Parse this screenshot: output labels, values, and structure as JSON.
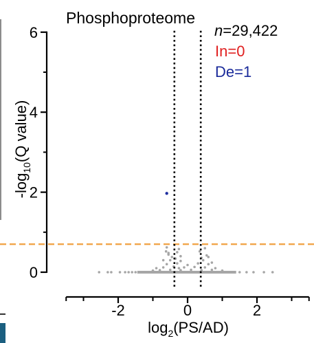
{
  "chart_data": {
    "type": "scatter",
    "title": "Phosphoproteome",
    "xlabel_main": "log",
    "xlabel_sub": "2",
    "xlabel_rest": "(PS/AD)",
    "ylabel_main": "-log",
    "ylabel_sub": "10",
    "ylabel_rest": "(Q value)",
    "xlim": [
      -3.5,
      3.5
    ],
    "ylim": [
      0,
      6
    ],
    "x_ticks": [
      -2,
      0,
      2
    ],
    "y_ticks": [
      0,
      2,
      4,
      6
    ],
    "x_minor_ticks": [
      -3,
      -1,
      1,
      3
    ],
    "y_minor_ticks": [
      1,
      3,
      5
    ],
    "x_tick_labels": [
      "-2",
      "0",
      "2"
    ],
    "y_tick_labels": [
      "0",
      "2",
      "4",
      "6"
    ],
    "fc_threshold_lines": [
      -0.38,
      0.38
    ],
    "q_threshold_line": 0.7,
    "colors": {
      "background_points": "#a6a6a6",
      "down_points": "#1f2fa0",
      "up_text": "#e02020",
      "down_text": "#1a2a9a",
      "threshold_line": "#f0a040",
      "fc_line": "#000000"
    },
    "annotations": {
      "n_prefix": "n",
      "n_value": "=29,422",
      "in_label": "In=0",
      "de_label": "De=1"
    },
    "significant_down": [
      {
        "x": -0.6,
        "y": 1.97
      }
    ],
    "background_points": [
      {
        "x": -2.55,
        "y": 0.0
      },
      {
        "x": -2.3,
        "y": 0.0
      },
      {
        "x": -2.2,
        "y": 0.0
      },
      {
        "x": -1.95,
        "y": 0.0
      },
      {
        "x": -1.8,
        "y": 0.0
      },
      {
        "x": -1.7,
        "y": 0.0
      },
      {
        "x": -1.6,
        "y": 0.0
      },
      {
        "x": -1.5,
        "y": 0.0
      },
      {
        "x": -1.4,
        "y": 0.0
      },
      {
        "x": -1.3,
        "y": 0.0
      },
      {
        "x": -1.2,
        "y": 0.0
      },
      {
        "x": -1.1,
        "y": 0.0
      },
      {
        "x": -1.0,
        "y": 0.0
      },
      {
        "x": -0.9,
        "y": 0.0
      },
      {
        "x": -0.8,
        "y": 0.0
      },
      {
        "x": -0.7,
        "y": 0.0
      },
      {
        "x": -0.6,
        "y": 0.0
      },
      {
        "x": -0.5,
        "y": 0.0
      },
      {
        "x": -0.4,
        "y": 0.0
      },
      {
        "x": -0.3,
        "y": 0.0
      },
      {
        "x": -0.2,
        "y": 0.0
      },
      {
        "x": -0.1,
        "y": 0.0
      },
      {
        "x": 0.0,
        "y": 0.0
      },
      {
        "x": 0.1,
        "y": 0.0
      },
      {
        "x": 0.2,
        "y": 0.0
      },
      {
        "x": 0.3,
        "y": 0.0
      },
      {
        "x": 0.4,
        "y": 0.0
      },
      {
        "x": 0.5,
        "y": 0.0
      },
      {
        "x": 0.6,
        "y": 0.0
      },
      {
        "x": 0.7,
        "y": 0.0
      },
      {
        "x": 0.8,
        "y": 0.0
      },
      {
        "x": 0.9,
        "y": 0.0
      },
      {
        "x": 1.0,
        "y": 0.0
      },
      {
        "x": 1.1,
        "y": 0.0
      },
      {
        "x": 1.2,
        "y": 0.0
      },
      {
        "x": 1.35,
        "y": 0.0
      },
      {
        "x": 1.5,
        "y": 0.0
      },
      {
        "x": 1.7,
        "y": 0.0
      },
      {
        "x": 1.9,
        "y": 0.0
      },
      {
        "x": 2.2,
        "y": 0.0
      },
      {
        "x": 2.45,
        "y": 0.0
      },
      {
        "x": -0.8,
        "y": 0.05
      },
      {
        "x": -0.5,
        "y": 0.06
      },
      {
        "x": -0.2,
        "y": 0.05
      },
      {
        "x": 0.1,
        "y": 0.06
      },
      {
        "x": 0.4,
        "y": 0.05
      },
      {
        "x": 0.7,
        "y": 0.06
      },
      {
        "x": -1.0,
        "y": 0.04
      },
      {
        "x": 1.0,
        "y": 0.04
      },
      {
        "x": -0.7,
        "y": 0.12
      },
      {
        "x": -0.4,
        "y": 0.14
      },
      {
        "x": -0.1,
        "y": 0.12
      },
      {
        "x": 0.2,
        "y": 0.13
      },
      {
        "x": 0.5,
        "y": 0.12
      },
      {
        "x": 0.8,
        "y": 0.1
      },
      {
        "x": -0.9,
        "y": 0.1
      },
      {
        "x": -0.25,
        "y": 0.1
      },
      {
        "x": -0.6,
        "y": 0.2
      },
      {
        "x": -0.3,
        "y": 0.22
      },
      {
        "x": 0.0,
        "y": 0.18
      },
      {
        "x": 0.3,
        "y": 0.22
      },
      {
        "x": 0.6,
        "y": 0.2
      },
      {
        "x": -0.5,
        "y": 0.3
      },
      {
        "x": -0.2,
        "y": 0.28
      },
      {
        "x": 0.45,
        "y": 0.3
      },
      {
        "x": -0.45,
        "y": 0.38
      },
      {
        "x": -0.2,
        "y": 0.4
      },
      {
        "x": 0.4,
        "y": 0.36
      },
      {
        "x": 0.55,
        "y": 0.42
      },
      {
        "x": -0.55,
        "y": 0.44
      },
      {
        "x": -0.3,
        "y": 0.5
      },
      {
        "x": 0.35,
        "y": 0.52
      },
      {
        "x": -0.62,
        "y": 0.52
      },
      {
        "x": -0.6,
        "y": 0.62
      },
      {
        "x": -0.25,
        "y": 0.58
      },
      {
        "x": 0.5,
        "y": 0.6
      },
      {
        "x": -0.55,
        "y": 0.48
      },
      {
        "x": 0.6,
        "y": 0.38
      },
      {
        "x": -0.7,
        "y": 0.3
      },
      {
        "x": 0.7,
        "y": 0.24
      },
      {
        "x": -0.35,
        "y": 0.34
      }
    ]
  }
}
